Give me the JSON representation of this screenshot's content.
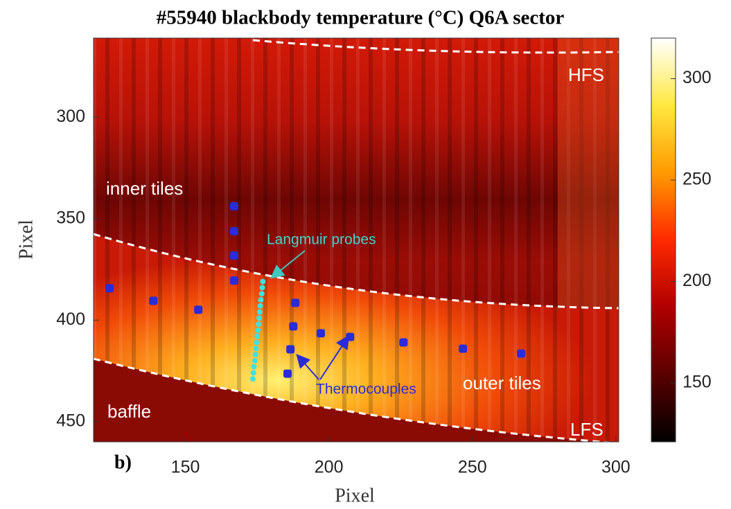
{
  "chart_data": {
    "type": "scatter",
    "title": "#55940 blackbody temperature (°C) Q6A sector",
    "x_label": "Pixel",
    "y_label": "Pixel",
    "xlim": [
      118,
      301
    ],
    "ylim": [
      261,
      460
    ],
    "y_reversed": true,
    "xticks": [
      150,
      200,
      250,
      300
    ],
    "yticks": [
      300,
      350,
      400,
      450
    ],
    "colorbar": {
      "lim": [
        121,
        320
      ],
      "ticks": [
        150,
        200,
        250,
        300
      ],
      "colormap": [
        "#000000",
        "#5a0000",
        "#b00000",
        "#ff2a00",
        "#ff9a00",
        "#ffe840",
        "#ffffff"
      ]
    },
    "series": [
      {
        "name": "Thermocouples",
        "color": "#2b2bd8",
        "x": [
          123.6,
          138.8,
          154.5,
          188.3,
          187.6,
          197.2,
          207.4,
          186.6,
          226.0,
          246.7,
          267.0,
          185.6,
          167.0,
          167.0,
          167.0,
          167.0
        ],
        "y": [
          384.3,
          390.5,
          394.9,
          391.5,
          403.1,
          406.5,
          408.3,
          414.4,
          411.0,
          414.1,
          416.5,
          426.4,
          343.9,
          356.2,
          368.2,
          380.5
        ]
      },
      {
        "name": "Langmuir probes",
        "color": "#3fe0e0",
        "x": [
          177.0,
          176.8,
          176.6,
          176.3,
          176.1,
          175.9,
          175.7,
          175.5,
          175.3,
          175.0,
          174.8,
          174.6,
          174.4,
          174.2,
          173.9,
          173.7,
          173.5
        ],
        "y": [
          381,
          384,
          387,
          390,
          393,
          396,
          399,
          402,
          405,
          408,
          411,
          414,
          417,
          420,
          423,
          426,
          429
        ]
      }
    ],
    "annotations": [
      "HFS",
      "LFS",
      "inner tiles",
      "outer tiles",
      "baffle",
      "b)"
    ]
  }
}
